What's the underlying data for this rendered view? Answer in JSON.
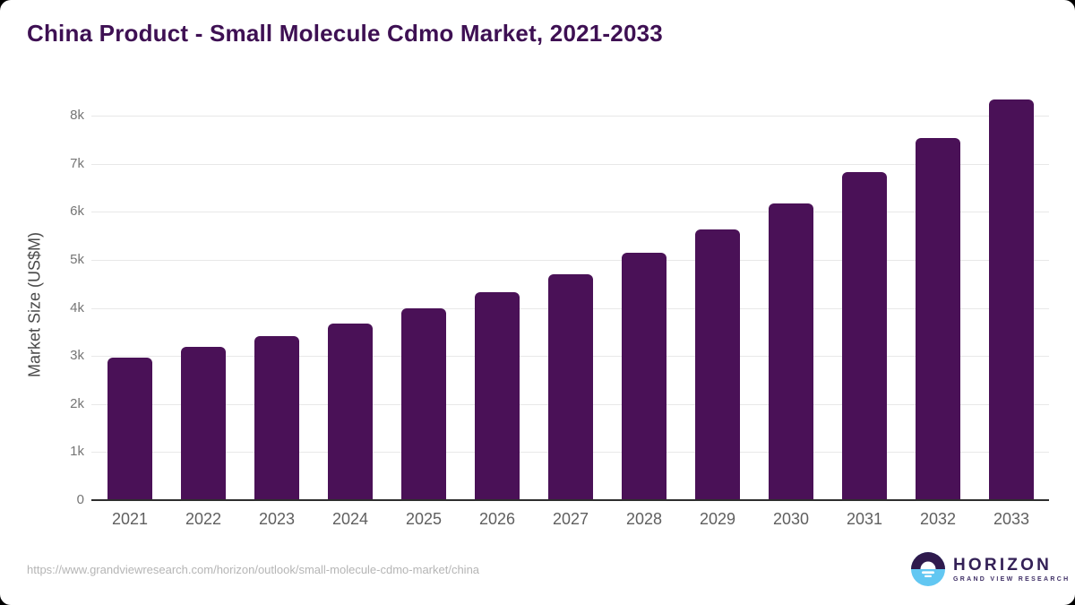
{
  "page": {
    "source_url": "https://www.grandviewresearch.com/horizon/outlook/small-molecule-cdmo-market/china"
  },
  "branding": {
    "logo_name": "HORIZON",
    "logo_subtitle": "GRAND VIEW RESEARCH",
    "logo_icon": "horizon-sun-circle-icon",
    "logo_purple": "#2f1a4d",
    "logo_blue": "#62c7f2"
  },
  "colors": {
    "background": "#ffffff",
    "bar": "#4a1157",
    "title_text": "#3e1053",
    "gridline": "#e8e8e8",
    "axis_line": "#2e2e2e",
    "y_tick_text": "#757575",
    "x_tick_text": "#5f5f5f",
    "url_text": "#b5b5b5"
  },
  "chart_data": {
    "type": "bar",
    "title": "China Product - Small Molecule Cdmo Market, 2021-2033",
    "xlabel": "",
    "ylabel": "Market Size (US$M)",
    "categories": [
      "2021",
      "2022",
      "2023",
      "2024",
      "2025",
      "2026",
      "2027",
      "2028",
      "2029",
      "2030",
      "2031",
      "2032",
      "2033"
    ],
    "values": [
      2960,
      3190,
      3420,
      3680,
      4000,
      4330,
      4700,
      5150,
      5630,
      6170,
      6820,
      7530,
      8340
    ],
    "ylim": [
      0,
      8500
    ],
    "ytick_interval": 1000,
    "ytick_labels": [
      "0",
      "1k",
      "2k",
      "3k",
      "4k",
      "5k",
      "6k",
      "7k",
      "8k"
    ],
    "grid": true,
    "legend": false,
    "bar_color": "#4a1157"
  }
}
